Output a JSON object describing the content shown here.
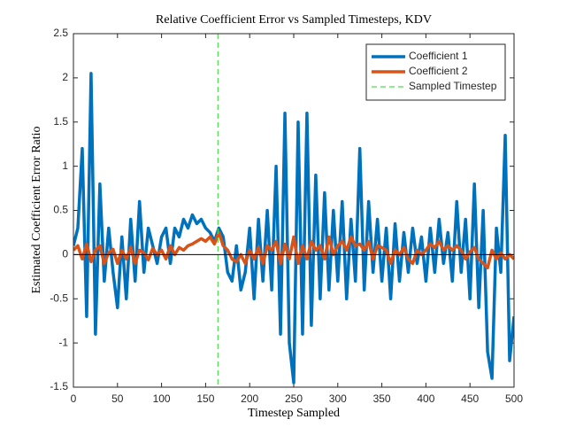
{
  "chart_data": {
    "type": "line",
    "title": "Relative Coefficient Error vs Sampled Timesteps, KDV",
    "x_label": "Timestep Sampled",
    "y_label": "Estimated Coefficient Error Ratio",
    "x": [
      0,
      5,
      10,
      15,
      20,
      25,
      30,
      35,
      40,
      45,
      50,
      55,
      60,
      65,
      70,
      75,
      80,
      85,
      90,
      95,
      100,
      105,
      110,
      115,
      120,
      125,
      130,
      135,
      140,
      145,
      150,
      155,
      160,
      165,
      170,
      175,
      180,
      185,
      190,
      195,
      200,
      205,
      210,
      215,
      220,
      225,
      230,
      235,
      240,
      245,
      250,
      255,
      260,
      265,
      270,
      275,
      280,
      285,
      290,
      295,
      300,
      305,
      310,
      315,
      320,
      325,
      330,
      335,
      340,
      345,
      350,
      355,
      360,
      365,
      370,
      375,
      380,
      385,
      390,
      395,
      400,
      405,
      410,
      415,
      420,
      425,
      430,
      435,
      440,
      445,
      450,
      455,
      460,
      465,
      470,
      475,
      480,
      485,
      490,
      495,
      500
    ],
    "series": [
      {
        "name": "Coefficient 1",
        "color": "#0072bd",
        "values": [
          0.1,
          0.3,
          1.2,
          -0.7,
          2.05,
          -0.9,
          0.8,
          -0.3,
          0.3,
          -0.2,
          -0.6,
          0.2,
          -0.5,
          0.4,
          -0.3,
          0.6,
          -0.2,
          0.3,
          0.1,
          -0.1,
          0.2,
          0.3,
          -0.1,
          0.3,
          0.2,
          0.4,
          0.3,
          0.45,
          0.35,
          0.4,
          0.3,
          0.25,
          0.15,
          0.3,
          0.2,
          -0.2,
          -0.3,
          0.1,
          -0.4,
          -0.2,
          0.3,
          -0.5,
          0.4,
          -0.3,
          0.5,
          -0.4,
          1.0,
          -0.9,
          1.6,
          -1.0,
          -1.45,
          1.5,
          -0.9,
          1.6,
          -0.8,
          0.9,
          -0.5,
          0.7,
          -0.4,
          0.5,
          -0.3,
          0.6,
          -0.5,
          0.4,
          -0.3,
          1.2,
          -0.4,
          0.6,
          -0.2,
          0.4,
          -0.3,
          0.3,
          -0.5,
          0.35,
          -0.3,
          0.25,
          -0.2,
          0.3,
          -0.1,
          0.2,
          -0.3,
          0.3,
          -0.2,
          0.4,
          -0.1,
          0.25,
          -0.3,
          0.6,
          -0.2,
          0.4,
          -0.5,
          0.8,
          -0.6,
          0.5,
          -1.1,
          -1.4,
          0.3,
          -0.2,
          1.35,
          -1.2,
          -0.7
        ]
      },
      {
        "name": "Coefficient 2",
        "color": "#d95319",
        "values": [
          0.05,
          0.1,
          -0.05,
          0.12,
          -0.08,
          0.05,
          0.1,
          -0.1,
          0.02,
          0.06,
          -0.1,
          0.05,
          -0.05,
          0.08,
          -0.1,
          0.05,
          0.02,
          -0.06,
          0.07,
          0.0,
          0.05,
          -0.05,
          0.1,
          0.0,
          0.08,
          0.05,
          0.1,
          0.12,
          0.15,
          0.18,
          0.15,
          0.2,
          0.12,
          0.25,
          0.1,
          0.05,
          -0.05,
          -0.08,
          0.0,
          -0.1,
          0.05,
          -0.05,
          0.08,
          -0.1,
          0.1,
          0.05,
          0.15,
          -0.1,
          0.12,
          -0.05,
          0.2,
          -0.1,
          0.1,
          -0.05,
          0.15,
          0.05,
          0.1,
          -0.05,
          0.2,
          0.0,
          0.1,
          0.15,
          0.05,
          0.2,
          0.1,
          0.12,
          0.05,
          0.15,
          -0.05,
          0.1,
          0.08,
          0.05,
          -0.1,
          0.05,
          0.0,
          0.08,
          -0.05,
          -0.1,
          0.05,
          0.0,
          0.05,
          0.12,
          0.08,
          0.15,
          0.05,
          0.1,
          0.05,
          0.1,
          0.05,
          -0.05,
          0.03,
          0.08,
          -0.05,
          -0.1,
          -0.15,
          0.05,
          -0.05,
          0.02,
          -0.05,
          0.0,
          -0.05
        ]
      }
    ],
    "vline": {
      "name": "Sampled Timestep",
      "x": 164,
      "color": "#4dde4d"
    },
    "xlim": [
      0,
      500
    ],
    "xticks": [
      0,
      50,
      100,
      150,
      200,
      250,
      300,
      350,
      400,
      450,
      500
    ],
    "ylim": [
      -1.5,
      2.5
    ],
    "yticks": [
      -1.5,
      -1,
      -0.5,
      0,
      0.5,
      1,
      1.5,
      2,
      2.5
    ],
    "legend": "top-right"
  }
}
